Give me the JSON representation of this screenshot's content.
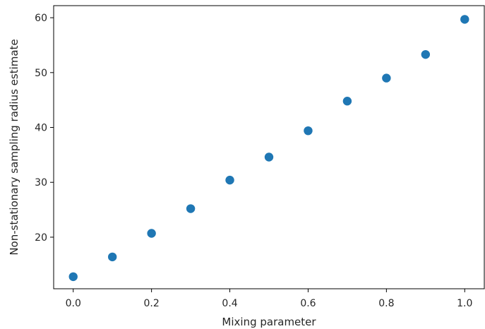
{
  "chart_data": {
    "type": "scatter",
    "title": "",
    "xlabel": "Mixing parameter",
    "ylabel": "Non-stationary sampling radius estimate",
    "xlim": [
      -0.05,
      1.05
    ],
    "ylim": [
      10.6,
      62.2
    ],
    "xticks": [
      0.0,
      0.2,
      0.4,
      0.6,
      0.8,
      1.0
    ],
    "xtick_labels": [
      "0.0",
      "0.2",
      "0.4",
      "0.6",
      "0.8",
      "1.0"
    ],
    "yticks": [
      20,
      30,
      40,
      50,
      60
    ],
    "ytick_labels": [
      "20",
      "30",
      "40",
      "50",
      "60"
    ],
    "grid": false,
    "legend": false,
    "marker_color": "#1f77b4",
    "series": [
      {
        "x": [
          0.0,
          0.1,
          0.2,
          0.3,
          0.4,
          0.5,
          0.6,
          0.7,
          0.8,
          0.9,
          1.0
        ],
        "y": [
          12.8,
          16.4,
          20.7,
          25.2,
          30.4,
          34.6,
          39.4,
          44.8,
          49.0,
          53.3,
          59.7
        ]
      }
    ]
  }
}
